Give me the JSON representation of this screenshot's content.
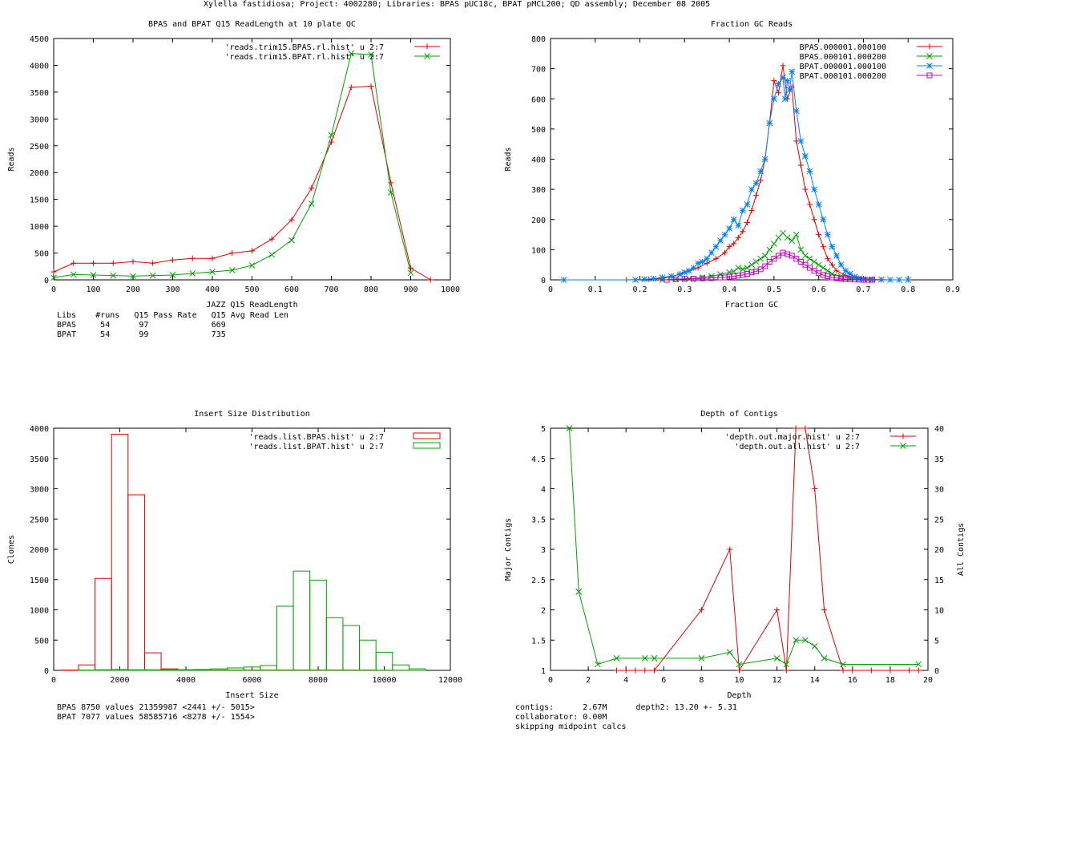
{
  "page_title": "Xylella fastidiosa; Project: 4002280; Libraries: BPAS pUC18c, BPAT pMCL200; QD assembly; December 08 2005",
  "colors": {
    "red": "#e00000",
    "green": "#00a000",
    "blue": "#0080ff",
    "magenta": "#c000c0",
    "axis": "#000000"
  },
  "readlength_stats": {
    "header": "Libs    #runs   Q15 Pass Rate   Q15 Avg Read Len",
    "rows": [
      "BPAS     54      97             669",
      "BPAT     54      99             735"
    ]
  },
  "insert_stats": {
    "lines": [
      "BPAS 8750 values 21359987 <2441 +/- 5015>",
      "BPAT 7077 values 58585716 <8278 +/- 1554>"
    ]
  },
  "depth_stats": {
    "lines": [
      "contigs:      2.67M      depth2: 13.20 +- 5.31",
      "collaborator: 0.00M",
      "skipping midpoint calcs"
    ]
  },
  "chart_data": [
    {
      "id": "readlength",
      "type": "line",
      "title": "BPAS and BPAT Q15 ReadLength at 10 plate QC",
      "xlabel": "JAZZ Q15 ReadLength",
      "ylabel": "Reads",
      "xlim": [
        0,
        1000
      ],
      "ylim": [
        0,
        4500
      ],
      "xticks": [
        0,
        100,
        200,
        300,
        400,
        500,
        600,
        700,
        800,
        900,
        1000
      ],
      "yticks": [
        0,
        500,
        1000,
        1500,
        2000,
        2500,
        3000,
        3500,
        4000,
        4500
      ],
      "series": [
        {
          "name": "'reads.trim15.BPAS.rl.hist' u 2:7",
          "color": "#e00000",
          "marker": "plus",
          "x": [
            0,
            50,
            100,
            150,
            200,
            250,
            300,
            350,
            400,
            450,
            500,
            550,
            600,
            650,
            700,
            750,
            800,
            850,
            900,
            950
          ],
          "y": [
            150,
            310,
            310,
            310,
            340,
            310,
            370,
            400,
            400,
            500,
            540,
            760,
            1120,
            1710,
            2570,
            3590,
            3610,
            1810,
            220,
            0
          ]
        },
        {
          "name": "'reads.trim15.BPAT.rl.hist' u 2:7",
          "color": "#00a000",
          "marker": "x",
          "x": [
            0,
            50,
            100,
            150,
            200,
            250,
            300,
            350,
            400,
            450,
            500,
            550,
            600,
            650,
            700,
            750,
            800,
            850,
            900
          ],
          "y": [
            40,
            100,
            90,
            80,
            70,
            80,
            90,
            120,
            150,
            180,
            270,
            470,
            740,
            1420,
            2700,
            4220,
            4200,
            1630,
            130
          ]
        }
      ]
    },
    {
      "id": "gc",
      "type": "line",
      "title": "Fraction GC Reads",
      "xlabel": "Fraction GC",
      "ylabel": "Reads",
      "xlim": [
        0,
        0.9
      ],
      "ylim": [
        0,
        800
      ],
      "xticks": [
        0,
        0.1,
        0.2,
        0.3,
        0.4,
        0.5,
        0.6,
        0.7,
        0.8,
        0.9
      ],
      "yticks": [
        0,
        100,
        200,
        300,
        400,
        500,
        600,
        700,
        800
      ],
      "series": [
        {
          "name": "BPAS.000001.000100",
          "color": "#e00000",
          "marker": "plus",
          "x": [
            0.17,
            0.22,
            0.25,
            0.27,
            0.29,
            0.31,
            0.33,
            0.35,
            0.37,
            0.39,
            0.4,
            0.41,
            0.42,
            0.43,
            0.44,
            0.45,
            0.46,
            0.47,
            0.48,
            0.49,
            0.5,
            0.51,
            0.52,
            0.53,
            0.54,
            0.55,
            0.56,
            0.57,
            0.58,
            0.59,
            0.6,
            0.61,
            0.62,
            0.63,
            0.64,
            0.66,
            0.68,
            0.7,
            0.72,
            0.74
          ],
          "y": [
            0,
            2,
            5,
            10,
            20,
            30,
            40,
            55,
            70,
            90,
            110,
            120,
            140,
            160,
            190,
            230,
            280,
            330,
            400,
            520,
            660,
            620,
            710,
            600,
            640,
            460,
            380,
            300,
            250,
            200,
            150,
            110,
            70,
            50,
            30,
            15,
            8,
            4,
            2,
            0
          ]
        },
        {
          "name": "BPAS.000101.000200",
          "color": "#00a000",
          "marker": "x",
          "x": [
            0.25,
            0.28,
            0.31,
            0.34,
            0.36,
            0.38,
            0.4,
            0.41,
            0.42,
            0.43,
            0.44,
            0.45,
            0.46,
            0.47,
            0.48,
            0.49,
            0.5,
            0.51,
            0.52,
            0.53,
            0.54,
            0.55,
            0.56,
            0.57,
            0.58,
            0.59,
            0.6,
            0.61,
            0.62,
            0.63,
            0.65,
            0.67,
            0.69,
            0.71
          ],
          "y": [
            0,
            2,
            4,
            8,
            12,
            18,
            25,
            28,
            40,
            35,
            40,
            50,
            60,
            70,
            80,
            100,
            120,
            140,
            155,
            140,
            130,
            150,
            100,
            80,
            70,
            60,
            50,
            40,
            30,
            20,
            12,
            6,
            3,
            0
          ]
        },
        {
          "name": "BPAT.000001.000100",
          "color": "#0080ff",
          "marker": "star",
          "x": [
            0.03,
            0.19,
            0.21,
            0.23,
            0.25,
            0.27,
            0.29,
            0.3,
            0.31,
            0.32,
            0.33,
            0.34,
            0.35,
            0.36,
            0.37,
            0.38,
            0.39,
            0.4,
            0.41,
            0.42,
            0.43,
            0.44,
            0.45,
            0.46,
            0.47,
            0.48,
            0.49,
            0.5,
            0.51,
            0.52,
            0.525,
            0.53,
            0.535,
            0.54,
            0.55,
            0.56,
            0.57,
            0.58,
            0.59,
            0.6,
            0.61,
            0.62,
            0.63,
            0.64,
            0.65,
            0.66,
            0.67,
            0.68,
            0.69,
            0.7,
            0.72,
            0.74,
            0.76,
            0.78,
            0.8
          ],
          "y": [
            0,
            0,
            2,
            4,
            8,
            12,
            18,
            25,
            30,
            40,
            55,
            60,
            70,
            90,
            110,
            130,
            150,
            170,
            200,
            180,
            230,
            250,
            300,
            320,
            360,
            400,
            520,
            600,
            650,
            670,
            600,
            660,
            630,
            690,
            560,
            460,
            410,
            360,
            300,
            250,
            200,
            150,
            110,
            80,
            50,
            30,
            20,
            10,
            5,
            2,
            1,
            1,
            0,
            0,
            0
          ]
        },
        {
          "name": "BPAT.000101.000200",
          "color": "#c000c0",
          "marker": "square",
          "x": [
            0.26,
            0.28,
            0.3,
            0.32,
            0.34,
            0.36,
            0.38,
            0.39,
            0.4,
            0.41,
            0.42,
            0.43,
            0.44,
            0.45,
            0.46,
            0.47,
            0.48,
            0.49,
            0.5,
            0.51,
            0.52,
            0.53,
            0.54,
            0.55,
            0.56,
            0.57,
            0.58,
            0.59,
            0.6,
            0.61,
            0.62,
            0.63,
            0.64,
            0.65,
            0.66,
            0.67,
            0.68,
            0.69,
            0.7,
            0.71,
            0.72
          ],
          "y": [
            0,
            2,
            3,
            4,
            5,
            6,
            8,
            8,
            10,
            12,
            14,
            16,
            20,
            25,
            28,
            35,
            45,
            60,
            70,
            80,
            90,
            85,
            80,
            70,
            60,
            50,
            40,
            30,
            22,
            16,
            12,
            8,
            6,
            4,
            2,
            2,
            1,
            1,
            0,
            0,
            0
          ]
        }
      ]
    },
    {
      "id": "insert",
      "type": "histogram",
      "title": "Insert Size Distribution",
      "xlabel": "Insert Size",
      "ylabel": "Clones",
      "xlim": [
        0,
        12000
      ],
      "ylim": [
        0,
        4000
      ],
      "xticks": [
        0,
        2000,
        4000,
        6000,
        8000,
        10000,
        12000
      ],
      "yticks": [
        0,
        500,
        1000,
        1500,
        2000,
        2500,
        3000,
        3500,
        4000
      ],
      "bin_width": 500,
      "series": [
        {
          "name": "'reads.list.BPAS.hist' u 2:7",
          "color": "#e00000",
          "x": [
            500,
            1000,
            1500,
            2000,
            2500,
            3000,
            3500,
            4000,
            4500,
            5000,
            5500,
            6000,
            6500,
            7000,
            7500,
            8000,
            8500,
            9000,
            9500,
            10000,
            10500
          ],
          "y": [
            5,
            90,
            1520,
            3900,
            2900,
            290,
            25,
            10,
            5,
            5,
            5,
            5,
            5,
            5,
            5,
            5,
            5,
            5,
            5,
            3,
            2
          ]
        },
        {
          "name": "'reads.list.BPAT.hist' u 2:7",
          "color": "#00a000",
          "x": [
            1000,
            1500,
            2000,
            2500,
            3000,
            3500,
            4000,
            4500,
            5000,
            5500,
            6000,
            6500,
            7000,
            7500,
            8000,
            8500,
            9000,
            9500,
            10000,
            10500,
            11000
          ],
          "y": [
            5,
            10,
            15,
            10,
            10,
            10,
            10,
            15,
            25,
            40,
            55,
            80,
            1060,
            1640,
            1490,
            870,
            740,
            500,
            300,
            90,
            25
          ]
        }
      ]
    },
    {
      "id": "depth",
      "type": "line",
      "title": "Depth of Contigs",
      "xlabel": "Depth",
      "ylabel": "Major Contigs",
      "y2label": "All Contigs",
      "xlim": [
        0,
        20
      ],
      "ylim": [
        1,
        5
      ],
      "y2lim": [
        0,
        40
      ],
      "xticks": [
        0,
        2,
        4,
        6,
        8,
        10,
        12,
        14,
        16,
        18,
        20
      ],
      "yticks": [
        1,
        1.5,
        2,
        2.5,
        3,
        3.5,
        4,
        4.5,
        5
      ],
      "y2ticks": [
        0,
        5,
        10,
        15,
        20,
        25,
        30,
        35,
        40
      ],
      "series": [
        {
          "name": "'depth.out.major.hist' u 2:7",
          "color": "#e00000",
          "marker": "plus",
          "axis": "y1",
          "x": [
            3.5,
            4,
            4.5,
            5,
            5.5,
            8,
            9.5,
            10,
            12,
            12.5,
            13,
            13.5,
            14,
            14.5,
            15.5,
            16,
            17,
            18,
            19,
            19.5
          ],
          "y": [
            1,
            1,
            1,
            1,
            1,
            2,
            3,
            1,
            2,
            1,
            5,
            5,
            4,
            2,
            1,
            1,
            1,
            1,
            1,
            1
          ]
        },
        {
          "name": "'depth.out.all.hist' u 2:7",
          "color": "#00a000",
          "marker": "x",
          "axis": "y2",
          "x": [
            1,
            1.5,
            2.5,
            3.5,
            5,
            5.5,
            8,
            9.5,
            10,
            12,
            12.5,
            13,
            13.5,
            14,
            14.5,
            15.5,
            19.5
          ],
          "y": [
            40,
            13,
            1,
            2,
            2,
            2,
            2,
            3,
            1,
            2,
            1,
            5,
            5,
            4,
            2,
            1,
            1
          ]
        }
      ]
    }
  ]
}
